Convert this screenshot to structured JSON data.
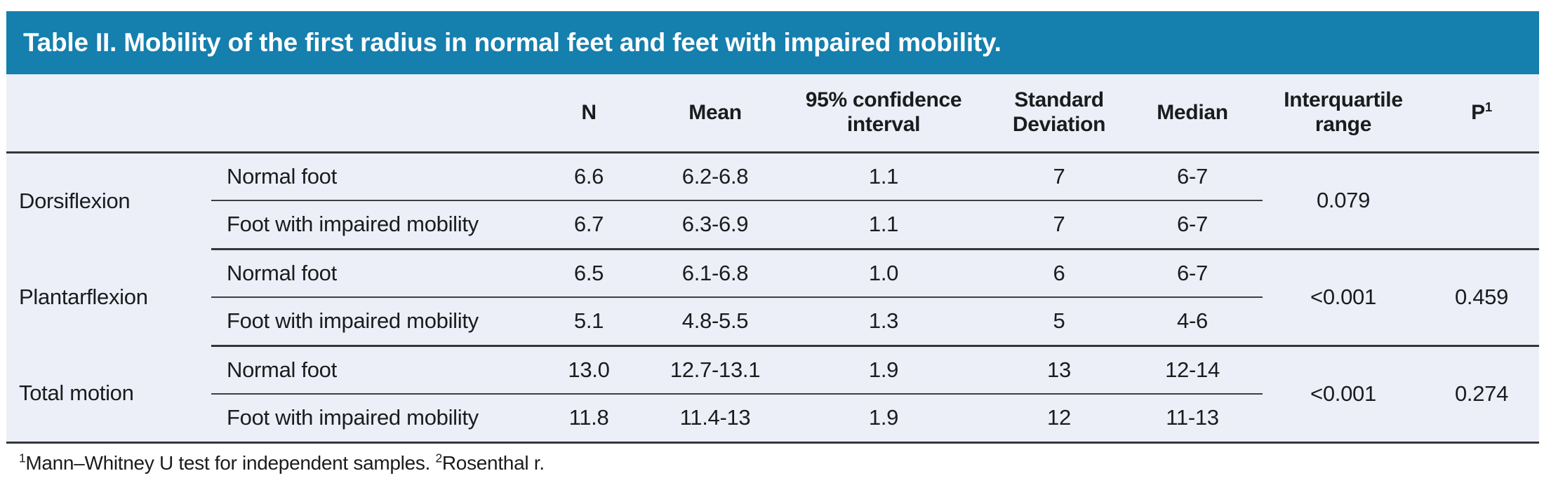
{
  "title": "Table II. Mobility of the first radius in normal feet and feet with impaired mobility.",
  "columns": {
    "n": "N",
    "mean": "Mean",
    "ci": "95% confidence interval",
    "sd": "Standard Deviation",
    "median": "Median",
    "iqr": "Interquartile range",
    "p_base": "P",
    "p_sup": "1"
  },
  "groups": [
    {
      "label": "Dorsiflexion",
      "rows": [
        {
          "foot": "Normal foot",
          "n": "6.6",
          "mean": "6.2-6.8",
          "ci": "1.1",
          "sd": "7",
          "median": "6-7"
        },
        {
          "foot": "Foot with impaired mobility",
          "n": "6.7",
          "mean": "6.3-6.9",
          "ci": "1.1",
          "sd": "7",
          "median": "6-7"
        }
      ],
      "iqr": "0.079",
      "p": ""
    },
    {
      "label": "Plantarflexion",
      "rows": [
        {
          "foot": "Normal foot",
          "n": "6.5",
          "mean": "6.1-6.8",
          "ci": "1.0",
          "sd": "6",
          "median": "6-7"
        },
        {
          "foot": "Foot with impaired mobility",
          "n": "5.1",
          "mean": "4.8-5.5",
          "ci": "1.3",
          "sd": "5",
          "median": "4-6"
        }
      ],
      "iqr": "<0.001",
      "p": "0.459"
    },
    {
      "label": "Total motion",
      "rows": [
        {
          "foot": "Normal foot",
          "n": "13.0",
          "mean": "12.7-13.1",
          "ci": "1.9",
          "sd": "13",
          "median": "12-14"
        },
        {
          "foot": "Foot with impaired mobility",
          "n": "11.8",
          "mean": "11.4-13",
          "ci": "1.9",
          "sd": "12",
          "median": "11-13"
        }
      ],
      "iqr": "<0.001",
      "p": "0.274"
    }
  ],
  "footnote": {
    "sup1": "1",
    "part1": "Mann–Whitney U test for independent samples. ",
    "sup2": "2",
    "part2": "Rosenthal r."
  },
  "colors": {
    "header_bar": "#157FAE",
    "row_bg": "#ECEFF7",
    "rule_dark": "#333638",
    "rule_light": "#3D4043",
    "text": "#1A1C1E",
    "title_text": "#FFFFFF"
  }
}
